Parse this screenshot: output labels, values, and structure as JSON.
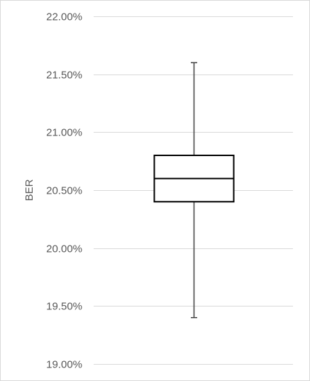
{
  "chart_data": {
    "type": "box",
    "title": "",
    "xlabel": "",
    "ylabel": "BER",
    "ylim": [
      19.0,
      22.0
    ],
    "ytick_step": 0.5,
    "ytick_format": "percent_2dp",
    "yticks": [
      "22.00%",
      "21.50%",
      "21.00%",
      "20.50%",
      "20.00%",
      "19.50%",
      "19.00%"
    ],
    "grid": true,
    "legend": "none",
    "series": [
      {
        "min": 19.4,
        "q1": 20.4,
        "median": 20.6,
        "q3": 20.8,
        "max": 21.6
      }
    ],
    "colors": {
      "grid": "#d9d9d9",
      "box": "#000000",
      "whisker": "#404040",
      "text": "#595959"
    }
  }
}
